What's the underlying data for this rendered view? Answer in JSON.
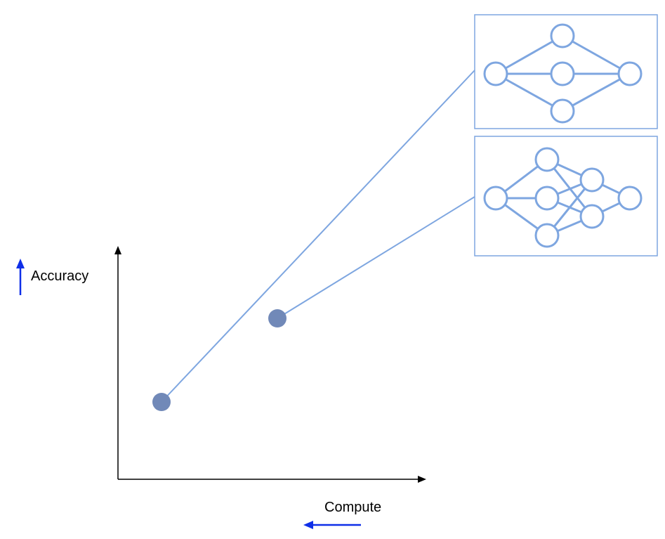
{
  "colors": {
    "background": "#ffffff",
    "axis": "#000000",
    "network": "#7EA6E0",
    "point": "#7189B8",
    "indicator_arrow": "#0F2FE8"
  },
  "axes": {
    "y_label": "Accuracy",
    "x_label": "Compute",
    "y_indicator_icon": "arrow-up-icon",
    "x_indicator_icon": "arrow-left-icon"
  },
  "points": [
    {
      "name": "model-a",
      "network": "network-top"
    },
    {
      "name": "model-b",
      "network": "network-bottom"
    }
  ],
  "networks": [
    {
      "name": "network-top",
      "layers": [
        1,
        3,
        1
      ]
    },
    {
      "name": "network-bottom",
      "layers": [
        1,
        3,
        2,
        1
      ]
    }
  ]
}
